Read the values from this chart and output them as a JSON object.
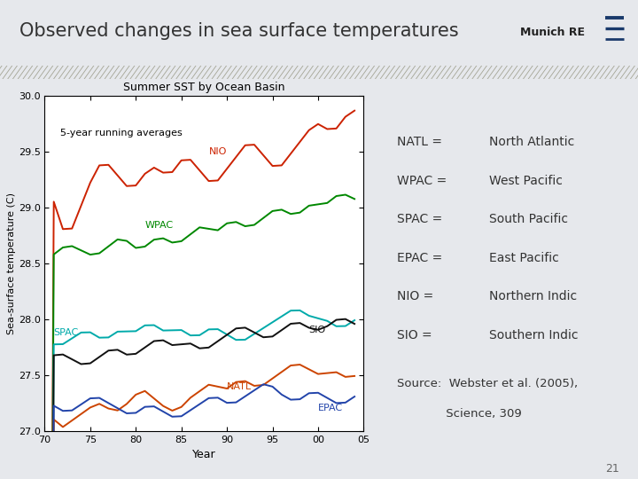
{
  "title": "Observed changes in sea surface temperatures",
  "chart_title": "Summer SST by Ocean Basin",
  "subtitle_chart": "5-year running averages",
  "xlabel": "Year",
  "ylabel": "Sea-surface temperature (C)",
  "slide_bg": "#e6e8ec",
  "box_bg": "#c8ccd4",
  "hatch_bg": "#b0a880",
  "legend_lines": [
    {
      "label": "NATL =",
      "desc": "North Atlantic"
    },
    {
      "label": "WPAC =",
      "desc": "West Pacific"
    },
    {
      "label": "SPAC =",
      "desc": "South Pacific"
    },
    {
      "label": "EPAC =",
      "desc": "East Pacific"
    },
    {
      "label": "NIO =",
      "desc": "Northern Indic"
    },
    {
      "label": "SIO =",
      "desc": "Southern Indic"
    }
  ],
  "page_number": "21",
  "ylim": [
    27.0,
    30.0
  ],
  "xlim": [
    70,
    105
  ],
  "yticks": [
    27.0,
    27.5,
    28.0,
    28.5,
    29.0,
    29.5,
    30.0
  ],
  "xticks": [
    70,
    75,
    80,
    85,
    90,
    95,
    100,
    105
  ],
  "xtick_labels": [
    "70",
    "75",
    "80",
    "85",
    "90",
    "95",
    "00",
    "05"
  ],
  "line_colors": {
    "NIO": "#CC2200",
    "WPAC": "#008800",
    "SPAC": "#00AAAA",
    "SIO": "#111111",
    "NATL": "#CC4400",
    "EPAC": "#2244AA"
  }
}
